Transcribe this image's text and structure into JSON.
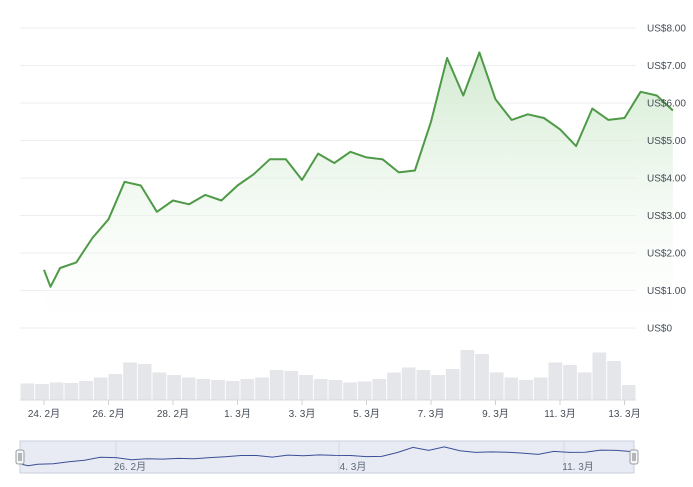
{
  "chart_data": {
    "type": "area",
    "title": "",
    "xlabel": "",
    "ylabel": "",
    "ylim": [
      0,
      8
    ],
    "y_ticks": [
      "US$0",
      "US$1.00",
      "US$2.00",
      "US$3.00",
      "US$4.00",
      "US$5.00",
      "US$6.00",
      "US$7.00",
      "US$8.00"
    ],
    "x_ticks": [
      "24. 2月",
      "26. 2月",
      "28. 2月",
      "1. 3月",
      "3. 3月",
      "5. 3月",
      "7. 3月",
      "9. 3月",
      "11. 3月",
      "13. 3月"
    ],
    "navigator_ticks": [
      "26. 2月",
      "4. 3月",
      "11. 3月"
    ],
    "grid": true,
    "legend": "none",
    "colors": {
      "line": "#4e9a47",
      "fill_top": "#cfe9cd",
      "volume": "#e4e6ea",
      "navigator_line": "#3c4f96",
      "navigator_bg": "#e8ebf4"
    },
    "series": [
      {
        "x": [
          0,
          0.2,
          0.5,
          1,
          1.5,
          2,
          2.5,
          3,
          3.5,
          4,
          4.5,
          5,
          5.5,
          6,
          6.5,
          7,
          7.5,
          8,
          8.5,
          9,
          9.5,
          10,
          10.5,
          11,
          11.5,
          12,
          12.5,
          13,
          13.5,
          14,
          14.5,
          15,
          15.5,
          16,
          16.5,
          17,
          17.5,
          18,
          18.5,
          19,
          19.5
        ],
        "values": [
          1.55,
          1.1,
          1.6,
          1.75,
          2.4,
          2.9,
          3.9,
          3.8,
          3.1,
          3.4,
          3.3,
          3.55,
          3.4,
          3.8,
          4.1,
          4.5,
          4.5,
          3.95,
          4.65,
          4.4,
          4.7,
          4.55,
          4.5,
          4.15,
          4.2,
          5.5,
          7.2,
          6.2,
          7.35,
          6.1,
          5.55,
          5.7,
          5.6,
          5.3,
          4.85,
          5.85,
          5.55,
          5.6,
          6.3,
          6.2,
          5.8
        ]
      }
    ],
    "volume": [
      0.33,
      0.32,
      0.35,
      0.34,
      0.38,
      0.45,
      0.52,
      0.75,
      0.72,
      0.55,
      0.5,
      0.45,
      0.42,
      0.4,
      0.38,
      0.42,
      0.45,
      0.6,
      0.58,
      0.5,
      0.42,
      0.4,
      0.35,
      0.37,
      0.42,
      0.55,
      0.65,
      0.6,
      0.5,
      0.62,
      1.0,
      0.92,
      0.55,
      0.45,
      0.4,
      0.45,
      0.75,
      0.7,
      0.55,
      0.95,
      0.78,
      0.3
    ]
  }
}
